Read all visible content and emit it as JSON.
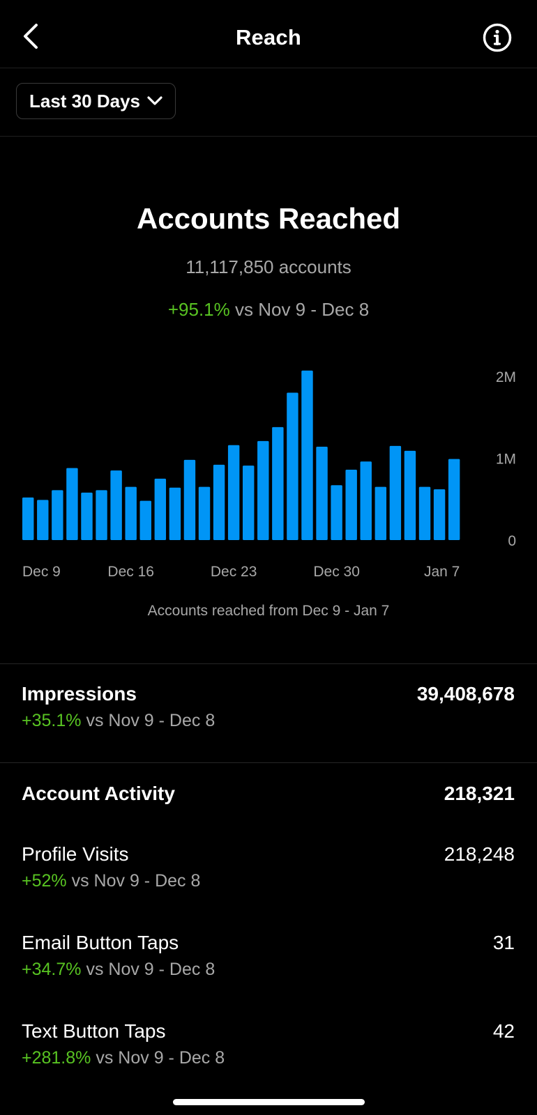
{
  "header": {
    "title": "Reach",
    "back_icon": "chevron-left-icon",
    "info_icon": "info-circle-icon"
  },
  "filter": {
    "selected": "Last 30 Days"
  },
  "summary": {
    "title": "Accounts Reached",
    "count_text": "11,117,850 accounts",
    "change_pct": "+95.1%",
    "change_vs": "vs Nov 9 - Dec 8"
  },
  "chart_data": {
    "type": "bar",
    "categories": [
      "Dec 9",
      "Dec 10",
      "Dec 11",
      "Dec 12",
      "Dec 13",
      "Dec 14",
      "Dec 15",
      "Dec 16",
      "Dec 17",
      "Dec 18",
      "Dec 19",
      "Dec 20",
      "Dec 21",
      "Dec 22",
      "Dec 23",
      "Dec 24",
      "Dec 25",
      "Dec 26",
      "Dec 27",
      "Dec 28",
      "Dec 29",
      "Dec 30",
      "Dec 31",
      "Jan 1",
      "Jan 2",
      "Jan 3",
      "Jan 4",
      "Jan 5",
      "Jan 6",
      "Jan 7"
    ],
    "values": [
      520000,
      490000,
      610000,
      880000,
      580000,
      610000,
      850000,
      650000,
      480000,
      750000,
      640000,
      980000,
      650000,
      920000,
      1160000,
      910000,
      1210000,
      1380000,
      1800000,
      2070000,
      1140000,
      670000,
      860000,
      960000,
      650000,
      1150000,
      1090000,
      650000,
      620000,
      990000
    ],
    "x_tick_labels": [
      "Dec 9",
      "Dec 16",
      "Dec 23",
      "Dec 30",
      "Jan 7"
    ],
    "y_tick_labels": [
      "2M",
      "1M",
      "0"
    ],
    "ylim": [
      0,
      2000000
    ],
    "caption": "Accounts reached from Dec 9 - Jan 7",
    "bar_color": "#0095f6"
  },
  "impressions": {
    "label": "Impressions",
    "value": "39,408,678",
    "change_pct": "+35.1%",
    "change_vs": "vs Nov 9 - Dec 8"
  },
  "activity": {
    "label": "Account Activity",
    "value": "218,321",
    "items": [
      {
        "label": "Profile Visits",
        "value": "218,248",
        "change_pct": "+52%",
        "change_vs": "vs Nov 9 - Dec 8"
      },
      {
        "label": "Email Button Taps",
        "value": "31",
        "change_pct": "+34.7%",
        "change_vs": "vs Nov 9 - Dec 8"
      },
      {
        "label": "Text Button Taps",
        "value": "42",
        "change_pct": "+281.8%",
        "change_vs": "vs Nov 9 - Dec 8"
      }
    ]
  },
  "colors": {
    "positive": "#58c322",
    "muted": "#a8a8a8",
    "background": "#000000"
  }
}
